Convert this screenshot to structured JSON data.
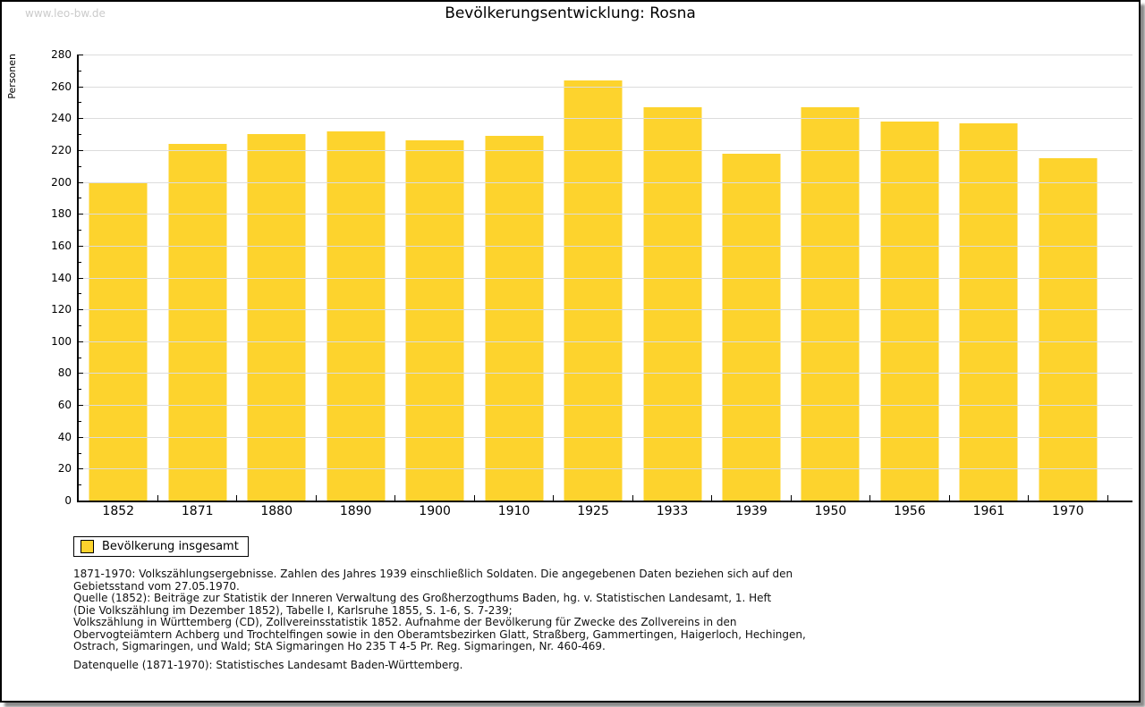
{
  "page": {
    "watermark": "www.leo-bw.de",
    "title": "Bevölkerungsentwicklung: Rosna"
  },
  "chart_data": {
    "type": "bar",
    "title": "Bevölkerungsentwicklung: Rosna",
    "xlabel": "",
    "ylabel": "Personen",
    "categories": [
      "1852",
      "1871",
      "1880",
      "1890",
      "1900",
      "1910",
      "1925",
      "1933",
      "1939",
      "1950",
      "1956",
      "1961",
      "1970"
    ],
    "series": [
      {
        "name": "Bevölkerung insgesamt",
        "values": [
          199,
          224,
          230,
          232,
          226,
          229,
          264,
          247,
          218,
          247,
          238,
          237,
          215
        ]
      }
    ],
    "ylim": [
      0,
      280
    ],
    "ytick_step": 20,
    "yminor_step": 10,
    "grid": true,
    "legend_position": "bottom-left",
    "bar_color": "#FDD32D",
    "grid_color": "#dcdcdc",
    "axis_color": "#000000"
  },
  "legend": {
    "label": "Bevölkerung insgesamt"
  },
  "footnotes": {
    "lines": [
      "1871-1970: Volkszählungsergebnisse. Zahlen des Jahres 1939 einschließlich Soldaten. Die angegebenen Daten beziehen sich auf den",
      "Gebietsstand vom 27.05.1970.",
      "Quelle (1852): Beiträge zur Statistik der Inneren Verwaltung des Großherzogthums Baden, hg. v. Statistischen Landesamt, 1. Heft",
      "(Die Volkszählung im Dezember 1852), Tabelle I, Karlsruhe 1855, S. 1-6, S. 7-239;",
      "Volkszählung in Württemberg (CD), Zollvereinsstatistik 1852. Aufnahme der Bevölkerung für Zwecke des Zollvereins in den",
      "Obervogteiämtern Achberg und Trochtelfingen sowie in den Oberamtsbezirken Glatt, Straßberg, Gammertingen, Haigerloch, Hechingen,",
      "Ostrach, Sigmaringen, und Wald; StA Sigmaringen Ho 235 T 4-5 Pr. Reg. Sigmaringen, Nr. 460-469."
    ],
    "datasource": "Datenquelle (1871-1970): Statistisches Landesamt Baden-Württemberg."
  }
}
